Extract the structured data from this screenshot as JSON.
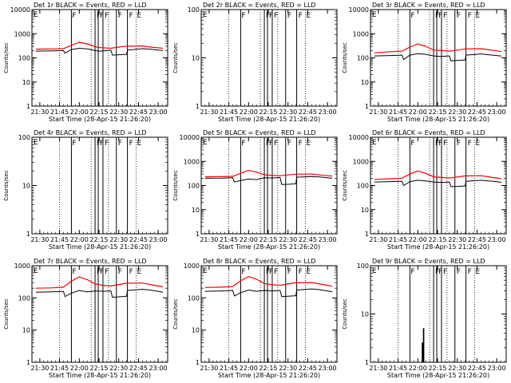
{
  "figure": {
    "title_suffix": " BLACK = Events, RED = LLD",
    "xlabel": "Start Time (28-Apr-15 21:26:20)",
    "ylabel": "Counts/sec",
    "xtick_labels": [
      "21:30",
      "21:45",
      "22:00",
      "22:15",
      "22:30",
      "22:45",
      "23:00"
    ],
    "colors": {
      "events": "#000000",
      "lld": "#ff0000",
      "axes": "#000000",
      "background": "#ffffff"
    },
    "flag_labels": [
      "F",
      "F",
      "F",
      "F",
      "F",
      "F",
      "E"
    ]
  },
  "chart_data": [
    {
      "type": "line",
      "title": "Det 1r BLACK = Events, RED = LLD",
      "ylog": true,
      "ylim": [
        1,
        10000
      ],
      "yticks": [
        1,
        10,
        100,
        1000,
        10000
      ],
      "ytick_labels": [
        "1",
        "10",
        "100",
        "1000",
        "10000"
      ],
      "xlabel": "Start Time (28-Apr-15 21:26:20)",
      "ylabel": "Counts/sec",
      "series": [
        {
          "key": "lld",
          "color": "#ff0000",
          "points": [
            [
              21.45,
              230
            ],
            [
              21.65,
              235
            ],
            [
              21.8,
              240
            ],
            [
              21.9,
              330
            ],
            [
              22.0,
              440
            ],
            [
              22.1,
              380
            ],
            [
              22.2,
              290
            ],
            [
              22.25,
              270
            ],
            [
              22.3,
              260
            ],
            [
              22.4,
              250
            ],
            [
              22.5,
              280
            ],
            [
              22.6,
              305
            ],
            [
              22.8,
              310
            ],
            [
              22.9,
              280
            ],
            [
              23.0,
              260
            ],
            [
              23.06,
              250
            ]
          ]
        },
        {
          "key": "events",
          "color": "#000000",
          "points": [
            [
              21.45,
              190
            ],
            [
              21.65,
              195
            ],
            [
              21.8,
              200
            ],
            [
              21.82,
              155
            ],
            [
              21.9,
              220
            ],
            [
              22.0,
              250
            ],
            [
              22.1,
              235
            ],
            [
              22.2,
              200
            ],
            [
              22.25,
              190
            ],
            [
              22.35,
              200
            ],
            [
              22.4,
              210
            ],
            [
              22.42,
              130
            ],
            [
              22.5,
              135
            ],
            [
              22.6,
              140
            ],
            [
              22.61,
              210
            ],
            [
              22.8,
              240
            ],
            [
              22.9,
              230
            ],
            [
              23.0,
              210
            ],
            [
              23.06,
              200
            ]
          ]
        }
      ]
    },
    {
      "type": "line",
      "title": "Det 2r BLACK = Events, RED = LLD",
      "ylog": true,
      "ylim": [
        1,
        100
      ],
      "yticks": [
        1,
        10,
        100
      ],
      "ytick_labels": [
        "1",
        "10",
        "100"
      ],
      "xlabel": "Start Time (28-Apr-15 21:26:20)",
      "ylabel": "Counts/sec",
      "series": []
    },
    {
      "type": "line",
      "title": "Det 3r BLACK = Events, RED = LLD",
      "ylog": true,
      "ylim": [
        1,
        10000
      ],
      "yticks": [
        1,
        10,
        100,
        1000,
        10000
      ],
      "ytick_labels": [
        "1",
        "10",
        "100",
        "1000",
        "10000"
      ],
      "xlabel": "Start Time (28-Apr-15 21:26:20)",
      "ylabel": "Counts/sec",
      "series": [
        {
          "key": "lld",
          "color": "#ff0000",
          "points": [
            [
              21.45,
              160
            ],
            [
              21.65,
              180
            ],
            [
              21.8,
              190
            ],
            [
              21.9,
              280
            ],
            [
              22.0,
              380
            ],
            [
              22.1,
              300
            ],
            [
              22.2,
              210
            ],
            [
              22.3,
              200
            ],
            [
              22.4,
              190
            ],
            [
              22.5,
              210
            ],
            [
              22.6,
              235
            ],
            [
              22.8,
              240
            ],
            [
              22.9,
              215
            ],
            [
              23.0,
              195
            ],
            [
              23.06,
              180
            ]
          ]
        },
        {
          "key": "events",
          "color": "#000000",
          "points": [
            [
              21.45,
              120
            ],
            [
              21.65,
              125
            ],
            [
              21.8,
              130
            ],
            [
              21.82,
              85
            ],
            [
              21.9,
              130
            ],
            [
              22.0,
              150
            ],
            [
              22.1,
              140
            ],
            [
              22.2,
              120
            ],
            [
              22.3,
              115
            ],
            [
              22.4,
              120
            ],
            [
              22.42,
              75
            ],
            [
              22.5,
              78
            ],
            [
              22.6,
              82
            ],
            [
              22.61,
              130
            ],
            [
              22.8,
              145
            ],
            [
              22.9,
              135
            ],
            [
              23.0,
              125
            ],
            [
              23.06,
              118
            ]
          ]
        }
      ]
    },
    {
      "type": "line",
      "title": "Det 4r BLACK = Events, RED = LLD",
      "ylog": true,
      "ylim": [
        1,
        100
      ],
      "yticks": [
        1,
        10,
        100
      ],
      "ytick_labels": [
        "1",
        "10",
        "100"
      ],
      "xlabel": "Start Time (28-Apr-15 21:26:20)",
      "ylabel": "Counts/sec",
      "series": []
    },
    {
      "type": "line",
      "title": "Det 5r BLACK = Events, RED = LLD",
      "ylog": true,
      "ylim": [
        1,
        10000
      ],
      "yticks": [
        1,
        10,
        100,
        1000,
        10000
      ],
      "ytick_labels": [
        "1",
        "10",
        "100",
        "1000",
        "10000"
      ],
      "xlabel": "Start Time (28-Apr-15 21:26:20)",
      "ylabel": "Counts/sec",
      "series": [
        {
          "key": "lld",
          "color": "#ff0000",
          "points": [
            [
              21.45,
              230
            ],
            [
              21.65,
              232
            ],
            [
              21.8,
              240
            ],
            [
              21.9,
              320
            ],
            [
              22.0,
              420
            ],
            [
              22.1,
              360
            ],
            [
              22.2,
              280
            ],
            [
              22.3,
              260
            ],
            [
              22.4,
              255
            ],
            [
              22.5,
              275
            ],
            [
              22.6,
              295
            ],
            [
              22.8,
              300
            ],
            [
              22.9,
              275
            ],
            [
              23.0,
              255
            ],
            [
              23.06,
              245
            ]
          ]
        },
        {
          "key": "events",
          "color": "#000000",
          "points": [
            [
              21.45,
              200
            ],
            [
              21.65,
              202
            ],
            [
              21.8,
              210
            ],
            [
              21.82,
              140
            ],
            [
              21.9,
              160
            ],
            [
              22.0,
              185
            ],
            [
              22.1,
              175
            ],
            [
              22.2,
              210
            ],
            [
              22.3,
              205
            ],
            [
              22.4,
              215
            ],
            [
              22.42,
              110
            ],
            [
              22.5,
              112
            ],
            [
              22.6,
              118
            ],
            [
              22.61,
              220
            ],
            [
              22.8,
              235
            ],
            [
              22.9,
              225
            ],
            [
              23.0,
              210
            ],
            [
              23.06,
              200
            ]
          ]
        }
      ]
    },
    {
      "type": "line",
      "title": "Det 6r BLACK = Events, RED = LLD",
      "ylog": true,
      "ylim": [
        1,
        10000
      ],
      "yticks": [
        1,
        10,
        100,
        1000,
        10000
      ],
      "ytick_labels": [
        "1",
        "10",
        "100",
        "1000",
        "10000"
      ],
      "xlabel": "Start Time (28-Apr-15 21:26:20)",
      "ylabel": "Counts/sec",
      "series": [
        {
          "key": "lld",
          "color": "#ff0000",
          "points": [
            [
              21.45,
              180
            ],
            [
              21.65,
              190
            ],
            [
              21.8,
              200
            ],
            [
              21.9,
              300
            ],
            [
              22.0,
              400
            ],
            [
              22.1,
              320
            ],
            [
              22.2,
              230
            ],
            [
              22.3,
              215
            ],
            [
              22.4,
              205
            ],
            [
              22.5,
              225
            ],
            [
              22.6,
              250
            ],
            [
              22.8,
              255
            ],
            [
              22.9,
              230
            ],
            [
              23.0,
              205
            ],
            [
              23.06,
              190
            ]
          ]
        },
        {
          "key": "events",
          "color": "#000000",
          "points": [
            [
              21.45,
              140
            ],
            [
              21.65,
              145
            ],
            [
              21.8,
              150
            ],
            [
              21.82,
              100
            ],
            [
              21.9,
              145
            ],
            [
              22.0,
              165
            ],
            [
              22.1,
              155
            ],
            [
              22.2,
              140
            ],
            [
              22.3,
              135
            ],
            [
              22.4,
              140
            ],
            [
              22.42,
              90
            ],
            [
              22.5,
              92
            ],
            [
              22.6,
              96
            ],
            [
              22.61,
              150
            ],
            [
              22.8,
              165
            ],
            [
              22.9,
              155
            ],
            [
              23.0,
              145
            ],
            [
              23.06,
              135
            ]
          ]
        }
      ]
    },
    {
      "type": "line",
      "title": "Det 7r BLACK = Events, RED = LLD",
      "ylog": true,
      "ylim": [
        1,
        1000
      ],
      "yticks": [
        1,
        10,
        100,
        1000
      ],
      "ytick_labels": [
        "1",
        "10",
        "100",
        "1000"
      ],
      "xlabel": "Start Time (28-Apr-15 21:26:20)",
      "ylabel": "Counts/sec",
      "series": [
        {
          "key": "lld",
          "color": "#ff0000",
          "points": [
            [
              21.45,
              200
            ],
            [
              21.65,
              205
            ],
            [
              21.8,
              215
            ],
            [
              21.9,
              330
            ],
            [
              22.0,
              450
            ],
            [
              22.1,
              370
            ],
            [
              22.2,
              270
            ],
            [
              22.3,
              245
            ],
            [
              22.4,
              235
            ],
            [
              22.5,
              260
            ],
            [
              22.6,
              285
            ],
            [
              22.8,
              290
            ],
            [
              22.9,
              260
            ],
            [
              23.0,
              235
            ],
            [
              23.06,
              220
            ]
          ]
        },
        {
          "key": "events",
          "color": "#000000",
          "points": [
            [
              21.45,
              150
            ],
            [
              21.65,
              155
            ],
            [
              21.8,
              160
            ],
            [
              21.82,
              110
            ],
            [
              21.9,
              140
            ],
            [
              22.0,
              170
            ],
            [
              22.1,
              155
            ],
            [
              22.2,
              165
            ],
            [
              22.3,
              160
            ],
            [
              22.4,
              165
            ],
            [
              22.42,
              105
            ],
            [
              22.5,
              108
            ],
            [
              22.6,
              112
            ],
            [
              22.61,
              170
            ],
            [
              22.8,
              185
            ],
            [
              22.9,
              175
            ],
            [
              23.0,
              160
            ],
            [
              23.06,
              150
            ]
          ]
        }
      ]
    },
    {
      "type": "line",
      "title": "Det 8r BLACK = Events, RED = LLD",
      "ylog": true,
      "ylim": [
        1,
        1000
      ],
      "yticks": [
        1,
        10,
        100,
        1000
      ],
      "ytick_labels": [
        "1",
        "10",
        "100",
        "1000"
      ],
      "xlabel": "Start Time (28-Apr-15 21:26:20)",
      "ylabel": "Counts/sec",
      "series": [
        {
          "key": "lld",
          "color": "#ff0000",
          "points": [
            [
              21.45,
              210
            ],
            [
              21.65,
              215
            ],
            [
              21.8,
              225
            ],
            [
              21.9,
              340
            ],
            [
              22.0,
              460
            ],
            [
              22.1,
              380
            ],
            [
              22.2,
              280
            ],
            [
              22.3,
              255
            ],
            [
              22.4,
              245
            ],
            [
              22.5,
              270
            ],
            [
              22.6,
              295
            ],
            [
              22.8,
              300
            ],
            [
              22.9,
              270
            ],
            [
              23.0,
              245
            ],
            [
              23.06,
              230
            ]
          ]
        },
        {
          "key": "events",
          "color": "#000000",
          "points": [
            [
              21.45,
              160
            ],
            [
              21.65,
              165
            ],
            [
              21.8,
              170
            ],
            [
              21.82,
              115
            ],
            [
              21.9,
              145
            ],
            [
              22.0,
              175
            ],
            [
              22.1,
              160
            ],
            [
              22.2,
              170
            ],
            [
              22.3,
              165
            ],
            [
              22.4,
              170
            ],
            [
              22.42,
              110
            ],
            [
              22.5,
              113
            ],
            [
              22.6,
              117
            ],
            [
              22.61,
              175
            ],
            [
              22.8,
              190
            ],
            [
              22.9,
              180
            ],
            [
              23.0,
              165
            ],
            [
              23.06,
              155
            ]
          ]
        }
      ]
    },
    {
      "type": "line",
      "title": "Det 9r BLACK = Events, RED = LLD",
      "ylog": true,
      "ylim": [
        1,
        100
      ],
      "yticks": [
        1,
        10,
        100
      ],
      "ytick_labels": [
        "1",
        "10",
        "100"
      ],
      "xlabel": "Start Time (28-Apr-15 21:26:20)",
      "ylabel": "Counts/sec",
      "series": [
        {
          "key": "events",
          "color": "#000000",
          "points": [
            [
              22.055,
              1
            ],
            [
              22.055,
              2.5
            ],
            [
              22.062,
              2.5
            ],
            [
              22.062,
              1
            ],
            [
              22.07,
              1
            ],
            [
              22.07,
              5
            ],
            [
              22.077,
              5
            ],
            [
              22.077,
              1
            ]
          ]
        }
      ]
    }
  ]
}
